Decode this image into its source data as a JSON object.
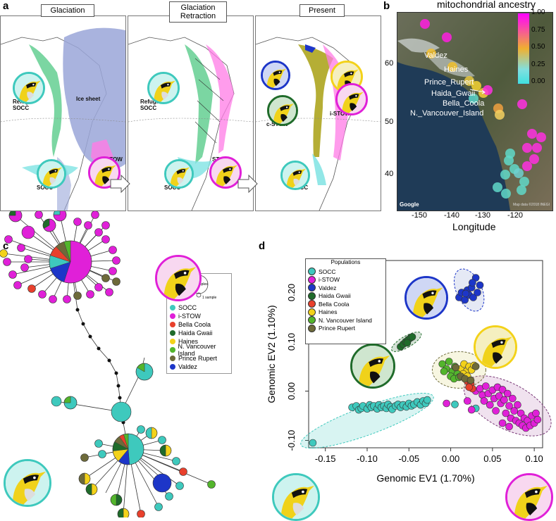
{
  "panel_labels": {
    "a": "a",
    "b": "b",
    "c": "c",
    "d": "d"
  },
  "panel_a": {
    "stages": [
      "Glaciation",
      "Glaciation Retraction",
      "Present"
    ],
    "labels": {
      "refugia_socc_1": "Refugia\nSOCC",
      "ice_sheet": "Ice sheet",
      "socc_1": "SOCC",
      "stow_1": "STOW",
      "refugia_socc_2": "Refugia\nSOCC",
      "socc_2": "SOCC",
      "stow_2": "STOW",
      "c_stow": "c-STOW",
      "i_stow": "i-STOW",
      "socc_3": "SOCC"
    }
  },
  "panel_b": {
    "title": "mitochondrial ancestry",
    "xlabel": "Longitude",
    "x_ticks": [
      "-150",
      "-140",
      "-130",
      "-120"
    ],
    "y_ticks": [
      "40",
      "50",
      "60"
    ],
    "colorbar_ticks": [
      "1.00",
      "0.75",
      "0.50",
      "0.25",
      "0.00"
    ],
    "places": [
      "Valdez",
      "Haines",
      "Prince_Rupert",
      "Haida_Gwaii",
      "Bella_Coola",
      "N._Vancouver_Island"
    ],
    "google_text": "Google",
    "map_credit": "Map data ©2018 INEGI"
  },
  "panel_c": {
    "legend_scale": [
      "10 samples",
      "1 sample"
    ],
    "legend_items": [
      {
        "label": "SOCC",
        "color": "#3ec9bd"
      },
      {
        "label": "i-STOW",
        "color": "#e020d8"
      },
      {
        "label": "Bella Coola",
        "color": "#e8402c"
      },
      {
        "label": "Haida Gwaii",
        "color": "#1f6b2a"
      },
      {
        "label": "Haines",
        "color": "#f3d21a"
      },
      {
        "label": "N. Vancouver Island",
        "color": "#53b52c"
      },
      {
        "label": "Prince Rupert",
        "color": "#6d6a3a"
      },
      {
        "label": "Valdez",
        "color": "#1d36c8"
      }
    ]
  },
  "chart_data": {
    "type": "scatter",
    "xlabel": "Genomic EV1 (1.70%)",
    "ylabel": "Genomic EV2 (1.10%)",
    "xlim": [
      -0.17,
      0.11
    ],
    "ylim": [
      -0.115,
      0.265
    ],
    "x_ticks": [
      -0.15,
      -0.1,
      -0.05,
      0.0,
      0.05,
      0.1
    ],
    "x_tick_labels": [
      "-0.15",
      "-0.10",
      "-0.05",
      "0.00",
      "0.05",
      "0.10"
    ],
    "y_ticks": [
      -0.1,
      0.0,
      0.1,
      0.2
    ],
    "y_tick_labels": [
      "-0.10",
      "0.00",
      "0.10",
      "0.20"
    ],
    "legend_title": "Populations",
    "series": [
      {
        "name": "SOCC",
        "color": "#3ec9bd",
        "points": [
          [
            -0.165,
            -0.105
          ],
          [
            -0.118,
            -0.033
          ],
          [
            -0.113,
            -0.03
          ],
          [
            -0.11,
            -0.038
          ],
          [
            -0.107,
            -0.035
          ],
          [
            -0.105,
            -0.03
          ],
          [
            -0.1,
            -0.036
          ],
          [
            -0.097,
            -0.028
          ],
          [
            -0.095,
            -0.033
          ],
          [
            -0.092,
            -0.03
          ],
          [
            -0.088,
            -0.036
          ],
          [
            -0.086,
            -0.028
          ],
          [
            -0.083,
            -0.033
          ],
          [
            -0.08,
            -0.03
          ],
          [
            -0.077,
            -0.035
          ],
          [
            -0.075,
            -0.027
          ],
          [
            -0.072,
            -0.032
          ],
          [
            -0.07,
            -0.037
          ],
          [
            -0.066,
            -0.03
          ],
          [
            -0.063,
            -0.027
          ],
          [
            -0.06,
            -0.033
          ],
          [
            -0.057,
            -0.028
          ],
          [
            -0.053,
            -0.032
          ],
          [
            -0.05,
            -0.025
          ],
          [
            -0.047,
            -0.03
          ],
          [
            -0.044,
            -0.027
          ],
          [
            -0.04,
            -0.022
          ],
          [
            -0.036,
            -0.028
          ],
          [
            -0.033,
            -0.02
          ],
          [
            -0.03,
            -0.025
          ],
          [
            -0.028,
            -0.018
          ],
          [
            0.005,
            -0.027
          ],
          [
            0.03,
            -0.035
          ]
        ]
      },
      {
        "name": "i-STOW",
        "color": "#e020d8",
        "points": [
          [
            -0.005,
            -0.025
          ],
          [
            0.02,
            -0.02
          ],
          [
            0.025,
            -0.038
          ],
          [
            0.03,
            0.0
          ],
          [
            0.035,
            0.005
          ],
          [
            0.038,
            -0.008
          ],
          [
            0.04,
            -0.02
          ],
          [
            0.042,
            0.01
          ],
          [
            0.045,
            -0.005
          ],
          [
            0.047,
            -0.028
          ],
          [
            0.05,
            0.002
          ],
          [
            0.052,
            -0.015
          ],
          [
            0.054,
            -0.04
          ],
          [
            0.056,
            0.008
          ],
          [
            0.058,
            -0.01
          ],
          [
            0.06,
            -0.025
          ],
          [
            0.062,
            0.003
          ],
          [
            0.064,
            -0.018
          ],
          [
            0.066,
            -0.045
          ],
          [
            0.068,
            -0.005
          ],
          [
            0.07,
            -0.03
          ],
          [
            0.072,
            -0.055
          ],
          [
            0.074,
            -0.015
          ],
          [
            0.076,
            -0.04
          ],
          [
            0.078,
            -0.06
          ],
          [
            0.08,
            -0.028
          ],
          [
            0.082,
            -0.065
          ],
          [
            0.084,
            -0.045
          ],
          [
            0.086,
            -0.07
          ],
          [
            0.088,
            -0.055
          ],
          [
            0.09,
            -0.075
          ],
          [
            0.092,
            -0.06
          ],
          [
            0.095,
            -0.07
          ],
          [
            0.097,
            -0.05
          ],
          [
            0.1,
            -0.065
          ],
          [
            0.102,
            -0.045
          ],
          [
            0.104,
            -0.058
          ],
          [
            0.062,
            -0.065
          ],
          [
            0.07,
            -0.072
          ]
        ]
      },
      {
        "name": "Valdez",
        "color": "#1d36c8",
        "points": [
          [
            0.01,
            0.19
          ],
          [
            0.013,
            0.2
          ],
          [
            0.017,
            0.185
          ],
          [
            0.02,
            0.205
          ],
          [
            0.022,
            0.195
          ],
          [
            0.025,
            0.21
          ],
          [
            0.027,
            0.19
          ],
          [
            0.03,
            0.23
          ],
          [
            0.032,
            0.2
          ],
          [
            0.035,
            0.215
          ],
          [
            0.026,
            0.22
          ],
          [
            0.018,
            0.198
          ]
        ]
      },
      {
        "name": "Haida Gwaii",
        "color": "#1f6b2a",
        "points": [
          [
            -0.06,
            0.09
          ],
          [
            -0.057,
            0.095
          ],
          [
            -0.054,
            0.1
          ],
          [
            -0.051,
            0.104
          ],
          [
            -0.048,
            0.108
          ],
          [
            -0.046,
            0.11
          ],
          [
            -0.052,
            0.098
          ]
        ]
      },
      {
        "name": "Bella Coola",
        "color": "#e8402c",
        "points": [
          [
            0.02,
            0.02
          ],
          [
            0.024,
            0.015
          ],
          [
            0.026,
            0.005
          ],
          [
            0.022,
            0.008
          ]
        ]
      },
      {
        "name": "Haines",
        "color": "#f3d21a",
        "points": [
          [
            0.012,
            0.045
          ],
          [
            0.016,
            0.055
          ],
          [
            0.019,
            0.04
          ],
          [
            0.022,
            0.05
          ],
          [
            0.025,
            0.043
          ],
          [
            0.028,
            0.052
          ],
          [
            0.015,
            0.035
          ],
          [
            0.02,
            0.03
          ]
        ]
      },
      {
        "name": "N. Vancouver Island",
        "color": "#53b52c",
        "points": [
          [
            -0.01,
            0.055
          ],
          [
            -0.005,
            0.045
          ],
          [
            -0.002,
            0.06
          ],
          [
            0.002,
            0.04
          ],
          [
            0.005,
            0.05
          ],
          [
            0.008,
            0.035
          ],
          [
            -0.008,
            0.04
          ],
          [
            0.0,
            0.03
          ],
          [
            0.004,
            0.025
          ],
          [
            0.01,
            0.028
          ]
        ]
      },
      {
        "name": "Prince Rupert",
        "color": "#6d6a3a",
        "points": [
          [
            0.006,
            0.048
          ],
          [
            0.012,
            0.03
          ],
          [
            0.017,
            0.025
          ],
          [
            0.03,
            0.05
          ],
          [
            0.024,
            0.022
          ]
        ]
      }
    ]
  }
}
